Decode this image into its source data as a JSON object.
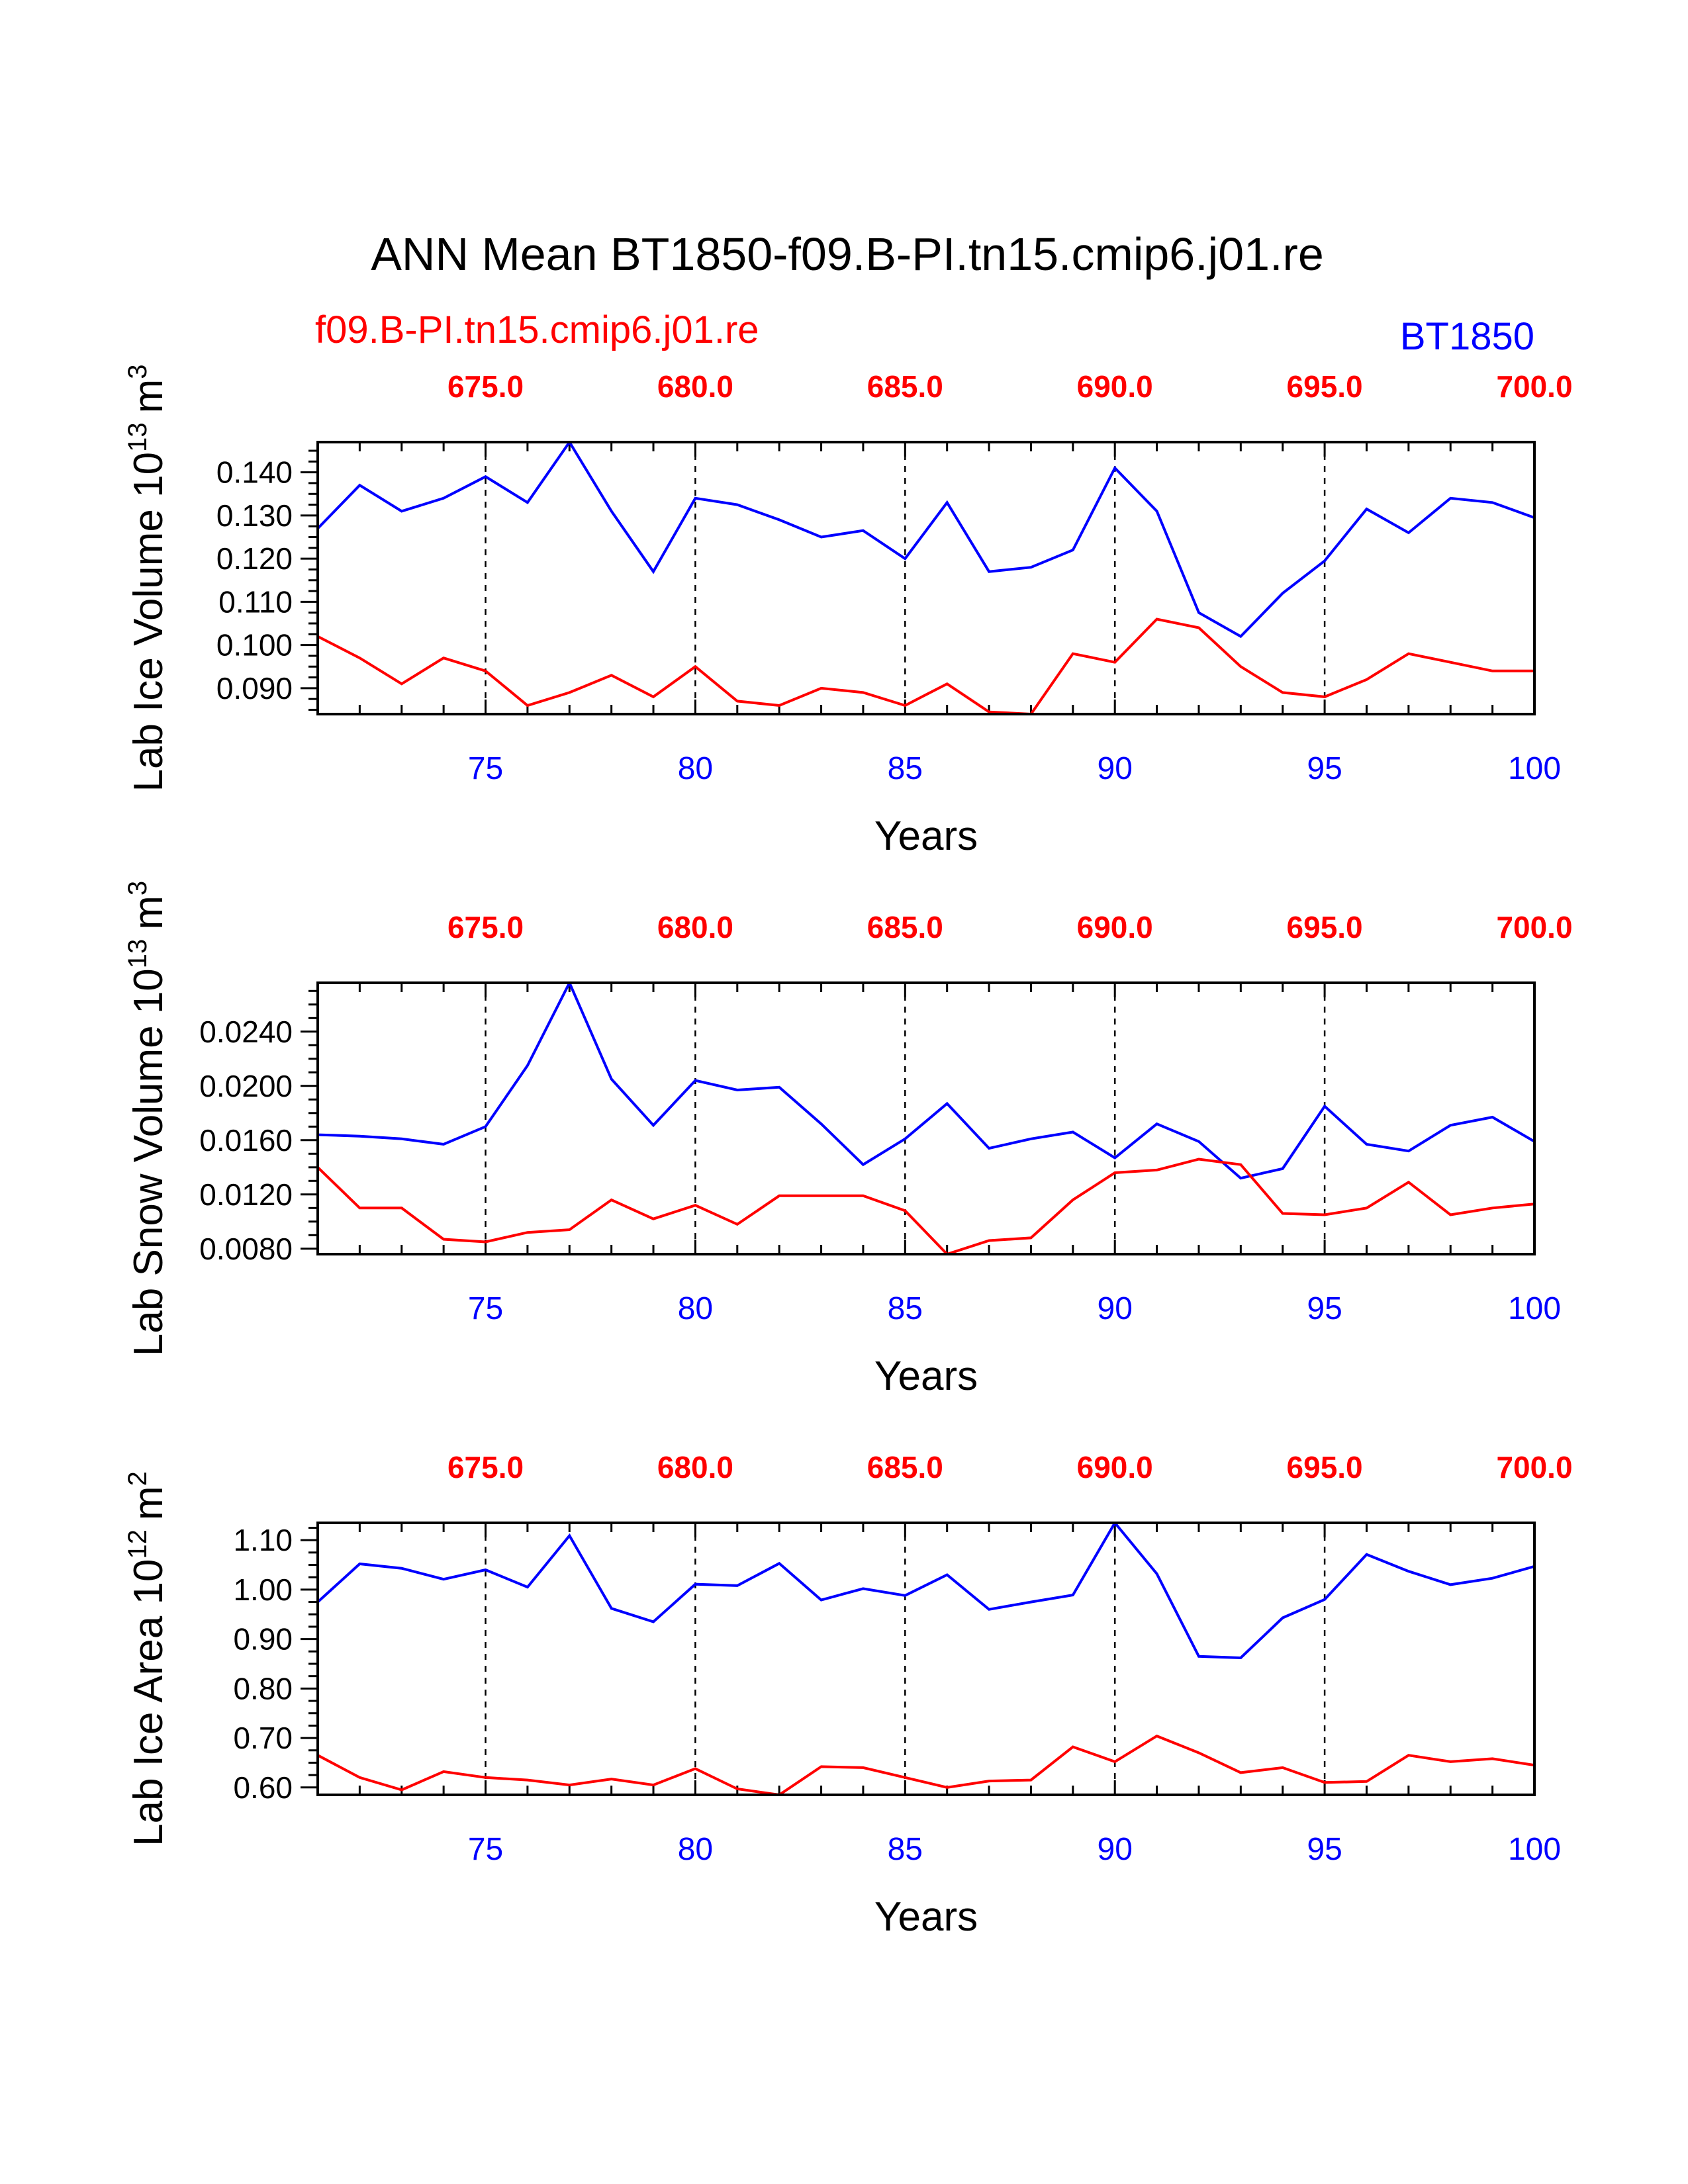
{
  "header": {
    "title": "ANN Mean BT1850-f09.B-PI.tn15.cmip6.j01.re",
    "left_label": "f09.B-PI.tn15.cmip6.j01.re",
    "right_label": "BT1850"
  },
  "colors": {
    "case_a": "#0000ff",
    "case_b": "#ff0000",
    "axis": "#000000"
  },
  "chart_data": [
    {
      "type": "line",
      "ylabel": "Lab Ice Volume 10",
      "ylabel_exp": "13",
      "ylabel_unit": "m",
      "ylabel_unit_exp": "3",
      "xlabel": "Years",
      "xlim": [
        71,
        100
      ],
      "ylim": [
        0.084,
        0.147
      ],
      "x_ticks": [
        "75",
        "80",
        "85",
        "90",
        "95",
        "100"
      ],
      "top_ticks": [
        "675.0",
        "680.0",
        "685.0",
        "690.0",
        "695.0",
        "700.0"
      ],
      "y_ticks": [
        "0.090",
        "0.100",
        "0.110",
        "0.120",
        "0.130",
        "0.140"
      ],
      "x": [
        71,
        72,
        73,
        74,
        75,
        76,
        77,
        78,
        79,
        80,
        81,
        82,
        83,
        84,
        85,
        86,
        87,
        88,
        89,
        90,
        91,
        92,
        93,
        94,
        95,
        96,
        97,
        98,
        99,
        100
      ],
      "series": [
        {
          "name": "BT1850",
          "color": "#0000ff",
          "values": [
            0.127,
            0.137,
            0.131,
            0.134,
            0.139,
            0.133,
            0.147,
            0.131,
            0.117,
            0.134,
            0.1325,
            0.129,
            0.125,
            0.1265,
            0.12,
            0.133,
            0.117,
            0.118,
            0.122,
            0.141,
            0.131,
            0.1075,
            0.102,
            0.112,
            0.1195,
            0.1315,
            0.126,
            0.134,
            0.133,
            0.1295
          ]
        },
        {
          "name": "f09.B-PI.tn15.cmip6.j01.re",
          "color": "#ff0000",
          "values": [
            0.102,
            0.097,
            0.091,
            0.097,
            0.094,
            0.086,
            0.089,
            0.093,
            0.088,
            0.095,
            0.087,
            0.086,
            0.09,
            0.089,
            0.086,
            0.091,
            0.0845,
            0.084,
            0.098,
            0.096,
            0.106,
            0.104,
            0.095,
            0.089,
            0.088,
            0.092,
            0.098,
            0.096,
            0.094,
            0.094
          ]
        }
      ]
    },
    {
      "type": "line",
      "ylabel": "Lab Snow Volume 10",
      "ylabel_exp": "13",
      "ylabel_unit": "m",
      "ylabel_unit_exp": "3",
      "xlabel": "Years",
      "xlim": [
        71,
        100
      ],
      "ylim": [
        0.0076,
        0.0276
      ],
      "x_ticks": [
        "75",
        "80",
        "85",
        "90",
        "95",
        "100"
      ],
      "top_ticks": [
        "675.0",
        "680.0",
        "685.0",
        "690.0",
        "695.0",
        "700.0"
      ],
      "y_ticks": [
        "0.0080",
        "0.0120",
        "0.0160",
        "0.0200",
        "0.0240"
      ],
      "x": [
        71,
        72,
        73,
        74,
        75,
        76,
        77,
        78,
        79,
        80,
        81,
        82,
        83,
        84,
        85,
        86,
        87,
        88,
        89,
        90,
        91,
        92,
        93,
        94,
        95,
        96,
        97,
        98,
        99,
        100
      ],
      "series": [
        {
          "name": "BT1850",
          "color": "#0000ff",
          "values": [
            0.0164,
            0.0163,
            0.0161,
            0.0157,
            0.017,
            0.0215,
            0.0276,
            0.0205,
            0.0171,
            0.0204,
            0.0197,
            0.0199,
            0.0172,
            0.0142,
            0.0161,
            0.0187,
            0.0154,
            0.0161,
            0.0166,
            0.0147,
            0.0172,
            0.0159,
            0.0132,
            0.0139,
            0.0185,
            0.0157,
            0.0152,
            0.0171,
            0.0177,
            0.0159
          ]
        },
        {
          "name": "f09.B-PI.tn15.cmip6.j01.re",
          "color": "#ff0000",
          "values": [
            0.014,
            0.011,
            0.011,
            0.0087,
            0.0085,
            0.0092,
            0.0094,
            0.0116,
            0.0102,
            0.0112,
            0.0098,
            0.0119,
            0.0119,
            0.0119,
            0.0108,
            0.0076,
            0.0086,
            0.0088,
            0.0116,
            0.0136,
            0.0138,
            0.0146,
            0.0142,
            0.0106,
            0.0105,
            0.011,
            0.0129,
            0.0105,
            0.011,
            0.0113
          ]
        }
      ]
    },
    {
      "type": "line",
      "ylabel": "Lab Ice Area 10",
      "ylabel_exp": "12",
      "ylabel_unit": "m",
      "ylabel_unit_exp": "2",
      "xlabel": "Years",
      "xlim": [
        71,
        100
      ],
      "ylim": [
        0.585,
        1.135
      ],
      "x_ticks": [
        "75",
        "80",
        "85",
        "90",
        "95",
        "100"
      ],
      "top_ticks": [
        "675.0",
        "680.0",
        "685.0",
        "690.0",
        "695.0",
        "700.0"
      ],
      "y_ticks": [
        "0.60",
        "0.70",
        "0.80",
        "0.90",
        "1.00",
        "1.10"
      ],
      "x": [
        71,
        72,
        73,
        74,
        75,
        76,
        77,
        78,
        79,
        80,
        81,
        82,
        83,
        84,
        85,
        86,
        87,
        88,
        89,
        90,
        91,
        92,
        93,
        94,
        95,
        96,
        97,
        98,
        99,
        100
      ],
      "series": [
        {
          "name": "BT1850",
          "color": "#0000ff",
          "values": [
            0.975,
            1.052,
            1.043,
            1.021,
            1.04,
            1.005,
            1.109,
            0.962,
            0.935,
            1.011,
            1.008,
            1.053,
            0.979,
            1.002,
            0.988,
            1.03,
            0.96,
            0.975,
            0.989,
            1.135,
            1.032,
            0.865,
            0.862,
            0.943,
            0.98,
            1.071,
            1.037,
            1.01,
            1.023,
            1.047
          ]
        },
        {
          "name": "f09.B-PI.tn15.cmip6.j01.re",
          "color": "#ff0000",
          "values": [
            0.665,
            0.62,
            0.595,
            0.632,
            0.62,
            0.615,
            0.605,
            0.617,
            0.605,
            0.638,
            0.597,
            0.585,
            0.642,
            0.64,
            0.62,
            0.6,
            0.613,
            0.615,
            0.682,
            0.652,
            0.704,
            0.67,
            0.63,
            0.64,
            0.61,
            0.612,
            0.665,
            0.652,
            0.658,
            0.645
          ]
        }
      ]
    }
  ]
}
